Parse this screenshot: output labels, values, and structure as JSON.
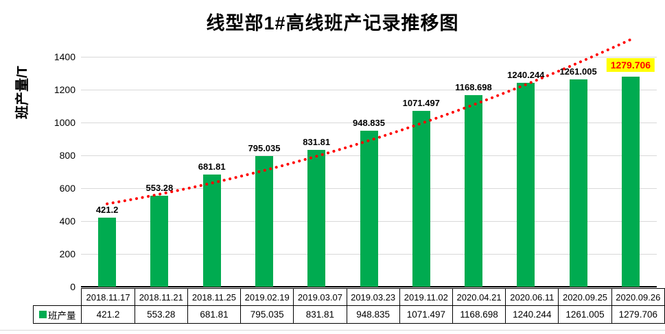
{
  "title": "线型部1#高线班产记录推移图",
  "chart_data": {
    "type": "bar",
    "title": "线型部1#高线班产记录推移图",
    "ylabel": "班产量/T",
    "xlabel": "",
    "ylim": [
      0,
      1400
    ],
    "yticks": [
      0,
      200,
      400,
      600,
      800,
      1000,
      1200,
      1400
    ],
    "grid": true,
    "legend_position": "table-row-header",
    "categories": [
      "2018.11.17",
      "2018.11.21",
      "2018.11.25",
      "2019.02.19",
      "2019.03.07",
      "2019.03.23",
      "2019.11.02",
      "2020.04.21",
      "2020.06.11",
      "2020.09.25",
      "2020.09.26"
    ],
    "series": [
      {
        "name": "班产量",
        "color": "#00ab50",
        "values": [
          421.2,
          553.28,
          681.81,
          795.035,
          831.81,
          948.835,
          1071.497,
          1168.698,
          1240.244,
          1261.005,
          1279.706
        ]
      }
    ],
    "data_labels": [
      "421.2",
      "553.28",
      "681.81",
      "795.035",
      "831.81",
      "948.835",
      "1071.497",
      "1168.698",
      "1240.244",
      "1261.005",
      "1279.706"
    ],
    "trendline": {
      "style": "dotted",
      "color": "#ff0000",
      "start_value": 505,
      "mid_value": 890,
      "end_value": 1505
    },
    "highlight_last_label": {
      "background": "#ffff00",
      "text_color": "#ff0000"
    }
  },
  "colors": {
    "bar": "#00ab50",
    "trendline": "#ff0000",
    "gridline": "#d9d9d9",
    "highlight_bg": "#ffff00",
    "highlight_text": "#ff0000",
    "text": "#000000"
  }
}
